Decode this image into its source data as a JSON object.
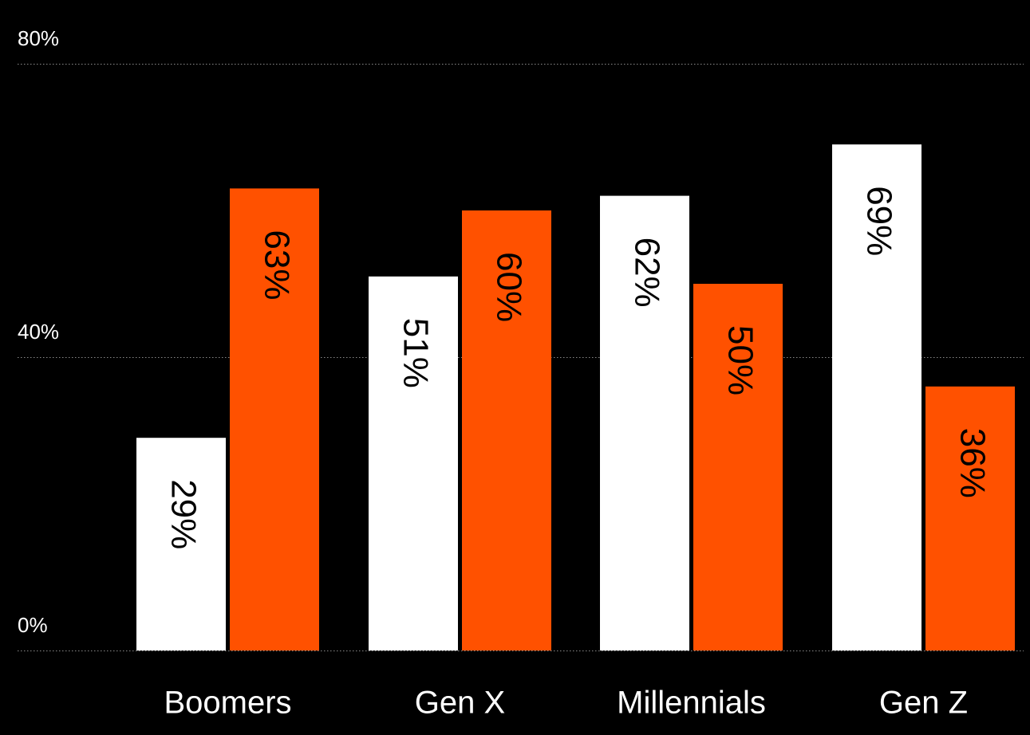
{
  "chart_data": {
    "type": "bar",
    "categories": [
      "Boomers",
      "Gen X",
      "Millennials",
      "Gen Z"
    ],
    "series": [
      {
        "values": [
          29,
          51,
          62,
          69
        ],
        "color": "#ffffff",
        "label_color": "#000000"
      },
      {
        "values": [
          63,
          60,
          50,
          36
        ],
        "color": "#ff5100",
        "label_color": "#000000"
      }
    ],
    "data_labels": [
      [
        "29%",
        "51%",
        "62%",
        "69%"
      ],
      [
        "63%",
        "60%",
        "50%",
        "36%"
      ]
    ],
    "ylim": [
      0,
      80
    ],
    "yticks": [
      0,
      40,
      80
    ],
    "ytick_labels": [
      "0%",
      "40%",
      "80%"
    ],
    "grid": true,
    "grid_style": "dotted",
    "background": "#000000",
    "title": "",
    "xlabel": "",
    "ylabel": ""
  }
}
